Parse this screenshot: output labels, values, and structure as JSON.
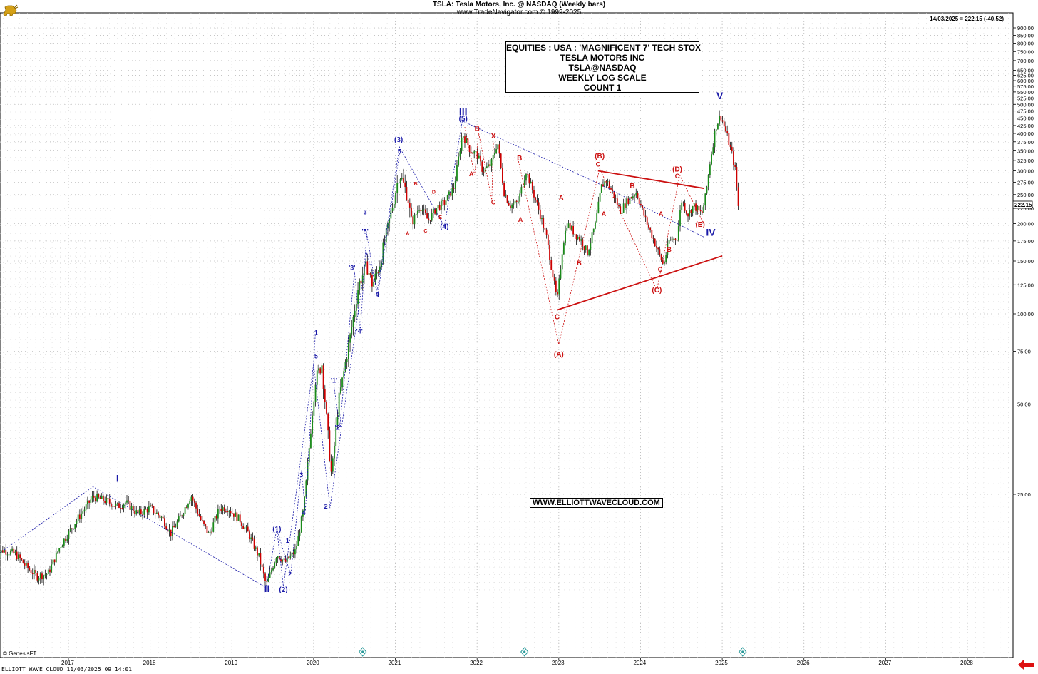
{
  "header": {
    "title": "TSLA:  Tesla Motors, Inc. @ NASDAQ  (Weekly bars)",
    "subtitle": "www.TradeNavigator.com © 1999-2025",
    "last_close": "14/03/2025 = 222.15 (-40.52)",
    "price_tag": "222.15"
  },
  "infobox": {
    "lines": [
      "EQUITIES : USA : 'MAGNIFICENT 7' TECH STOX",
      "TESLA MOTORS INC",
      "TSLA@NASDAQ",
      "WEEKLY LOG SCALE",
      "COUNT 1"
    ]
  },
  "website": "WWW.ELLIOTTWAVECLOUD.COM",
  "credit": "© GenesisFT",
  "footer": "ELLIOTT WAVE CLOUD   11/03/2025 09:14:01",
  "colors": {
    "up": "#1a8a1a",
    "down": "#cc0000",
    "blue": "#1a1aa8",
    "red": "#cc1111",
    "grid": "#bdbdbd"
  },
  "icons": [
    "bull-logo-icon",
    "left-arrow-icon",
    "marker-icon"
  ],
  "chart_data": {
    "type": "candlestick",
    "scale": "log",
    "ylim": [
      11,
      900
    ],
    "xlim": [
      2016.1,
      2028.6
    ],
    "grid": true,
    "y_ticks": [
      25,
      50,
      75,
      100,
      125,
      150,
      175,
      200,
      225,
      250,
      275,
      300,
      325,
      350,
      375,
      400,
      425,
      450,
      475,
      500,
      525,
      550,
      575,
      600,
      625,
      650,
      700,
      750,
      800,
      850,
      900
    ],
    "x_ticks": [
      "2017",
      "2018",
      "2019",
      "2020",
      "2021",
      "2022",
      "2023",
      "2024",
      "2025",
      "2026",
      "2027",
      "2028"
    ],
    "price_path": [
      [
        2016.1,
        15.5
      ],
      [
        2016.2,
        16.3
      ],
      [
        2016.35,
        15.8
      ],
      [
        2016.5,
        14.2
      ],
      [
        2016.62,
        13.3
      ],
      [
        2016.75,
        13.6
      ],
      [
        2016.9,
        16.8
      ],
      [
        2017.1,
        20.5
      ],
      [
        2017.3,
        24.5
      ],
      [
        2017.45,
        23.8
      ],
      [
        2017.6,
        22.8
      ],
      [
        2017.7,
        23.5
      ],
      [
        2017.85,
        21.5
      ],
      [
        2018.0,
        22.5
      ],
      [
        2018.15,
        20.8
      ],
      [
        2018.25,
        18.5
      ],
      [
        2018.35,
        20.5
      ],
      [
        2018.5,
        24.8
      ],
      [
        2018.62,
        20.5
      ],
      [
        2018.72,
        18.3
      ],
      [
        2018.85,
        22.5
      ],
      [
        2018.95,
        22.5
      ],
      [
        2019.1,
        20.5
      ],
      [
        2019.2,
        18.5
      ],
      [
        2019.33,
        15.5
      ],
      [
        2019.42,
        12.4
      ],
      [
        2019.55,
        15.8
      ],
      [
        2019.65,
        14.8
      ],
      [
        2019.78,
        16.2
      ],
      [
        2019.88,
        22.5
      ],
      [
        2020.02,
        60
      ],
      [
        2020.1,
        68
      ],
      [
        2020.22,
        28.5
      ],
      [
        2020.3,
        50
      ],
      [
        2020.45,
        85
      ],
      [
        2020.55,
        125
      ],
      [
        2020.65,
        145
      ],
      [
        2020.72,
        125
      ],
      [
        2020.8,
        143
      ],
      [
        2020.92,
        200
      ],
      [
        2021.05,
        295
      ],
      [
        2021.15,
        248
      ],
      [
        2021.2,
        200
      ],
      [
        2021.3,
        230
      ],
      [
        2021.4,
        205
      ],
      [
        2021.5,
        225
      ],
      [
        2021.6,
        235
      ],
      [
        2021.72,
        265
      ],
      [
        2021.82,
        400
      ],
      [
        2021.92,
        350
      ],
      [
        2022.0,
        340
      ],
      [
        2022.07,
        300
      ],
      [
        2022.17,
        315
      ],
      [
        2022.25,
        375
      ],
      [
        2022.33,
        255
      ],
      [
        2022.4,
        230
      ],
      [
        2022.5,
        235
      ],
      [
        2022.6,
        300
      ],
      [
        2022.75,
        225
      ],
      [
        2022.85,
        180
      ],
      [
        2022.98,
        110
      ],
      [
        2023.05,
        170
      ],
      [
        2023.1,
        200
      ],
      [
        2023.2,
        185
      ],
      [
        2023.28,
        175
      ],
      [
        2023.35,
        160
      ],
      [
        2023.45,
        200
      ],
      [
        2023.52,
        265
      ],
      [
        2023.58,
        280
      ],
      [
        2023.67,
        250
      ],
      [
        2023.75,
        220
      ],
      [
        2023.85,
        240
      ],
      [
        2023.95,
        255
      ],
      [
        2024.05,
        210
      ],
      [
        2024.15,
        180
      ],
      [
        2024.28,
        145
      ],
      [
        2024.35,
        175
      ],
      [
        2024.45,
        180
      ],
      [
        2024.5,
        240
      ],
      [
        2024.58,
        215
      ],
      [
        2024.65,
        230
      ],
      [
        2024.75,
        215
      ],
      [
        2024.8,
        250
      ],
      [
        2024.85,
        320
      ],
      [
        2024.92,
        420
      ],
      [
        2024.98,
        460
      ],
      [
        2025.05,
        400
      ],
      [
        2025.12,
        340
      ],
      [
        2025.16,
        300
      ],
      [
        2025.2,
        222
      ]
    ],
    "ohlc_last": {
      "date": "14/03/2025",
      "close": 222.15,
      "change": -40.52
    },
    "annotations": [
      {
        "t": 2017.6,
        "p": 27.5,
        "label": "I",
        "color": "blue",
        "size": "big"
      },
      {
        "t": 2019.43,
        "p": 11.8,
        "label": "II",
        "color": "blue",
        "size": "big"
      },
      {
        "t": 2021.83,
        "p": 460,
        "label": "III",
        "color": "blue",
        "size": "big"
      },
      {
        "t": 2024.86,
        "p": 182,
        "label": "IV",
        "color": "blue",
        "size": "big"
      },
      {
        "t": 2024.97,
        "p": 520,
        "label": "V",
        "color": "blue",
        "size": "big"
      },
      {
        "t": 2019.55,
        "p": 18.8,
        "label": "(1)",
        "color": "blue",
        "size": "med"
      },
      {
        "t": 2019.63,
        "p": 11.8,
        "label": "(2)",
        "color": "blue",
        "size": "med"
      },
      {
        "t": 2021.04,
        "p": 375,
        "label": "(3)",
        "color": "blue",
        "size": "med"
      },
      {
        "t": 2021.6,
        "p": 192,
        "label": "(4)",
        "color": "blue",
        "size": "med"
      },
      {
        "t": 2021.83,
        "p": 440,
        "label": "(5)",
        "color": "blue",
        "size": "med"
      },
      {
        "t": 2019.68,
        "p": 17.2,
        "label": "1",
        "color": "blue",
        "size": "small"
      },
      {
        "t": 2019.71,
        "p": 13.3,
        "label": "2",
        "color": "blue",
        "size": "small"
      },
      {
        "t": 2019.85,
        "p": 28.5,
        "label": "3",
        "color": "blue",
        "size": "small"
      },
      {
        "t": 2019.88,
        "p": 21.3,
        "label": "4",
        "color": "blue",
        "size": "small"
      },
      {
        "t": 2020.03,
        "p": 85,
        "label": "1",
        "color": "blue",
        "size": "small"
      },
      {
        "t": 2020.03,
        "p": 71,
        "label": "5",
        "color": "blue",
        "size": "small"
      },
      {
        "t": 2020.15,
        "p": 22.4,
        "label": "2",
        "color": "blue",
        "size": "small"
      },
      {
        "t": 2020.25,
        "p": 59,
        "label": "'1'",
        "color": "blue",
        "size": "small"
      },
      {
        "t": 2020.3,
        "p": 41,
        "label": "'2'",
        "color": "blue",
        "size": "small"
      },
      {
        "t": 2020.47,
        "p": 140,
        "label": "'3'",
        "color": "blue",
        "size": "small"
      },
      {
        "t": 2020.56,
        "p": 86,
        "label": "'4'",
        "color": "blue",
        "size": "small"
      },
      {
        "t": 2020.63,
        "p": 185,
        "label": "'5'",
        "color": "blue",
        "size": "small"
      },
      {
        "t": 2020.63,
        "p": 215,
        "label": "3",
        "color": "blue",
        "size": "small"
      },
      {
        "t": 2020.78,
        "p": 114,
        "label": "4",
        "color": "blue",
        "size": "small"
      },
      {
        "t": 2021.05,
        "p": 342,
        "label": "5",
        "color": "blue",
        "size": "small"
      },
      {
        "t": 2021.15,
        "p": 183,
        "label": "A",
        "color": "red",
        "size": "tiny"
      },
      {
        "t": 2021.25,
        "p": 268,
        "label": "B",
        "color": "red",
        "size": "tiny"
      },
      {
        "t": 2021.37,
        "p": 187,
        "label": "C",
        "color": "red",
        "size": "tiny"
      },
      {
        "t": 2021.47,
        "p": 252,
        "label": "D",
        "color": "red",
        "size": "tiny"
      },
      {
        "t": 2021.55,
        "p": 207,
        "label": "E",
        "color": "red",
        "size": "tiny"
      },
      {
        "t": 2021.93,
        "p": 288,
        "label": "A",
        "color": "red",
        "size": "small"
      },
      {
        "t": 2022.0,
        "p": 408,
        "label": "B",
        "color": "red",
        "size": "med"
      },
      {
        "t": 2022.2,
        "p": 232,
        "label": "C",
        "color": "red",
        "size": "small"
      },
      {
        "t": 2022.2,
        "p": 385,
        "label": "X",
        "color": "red",
        "size": "med"
      },
      {
        "t": 2022.52,
        "p": 325,
        "label": "B",
        "color": "red",
        "size": "med"
      },
      {
        "t": 2022.53,
        "p": 203,
        "label": "A",
        "color": "red",
        "size": "small"
      },
      {
        "t": 2022.98,
        "p": 96,
        "label": "C",
        "color": "red",
        "size": "med"
      },
      {
        "t": 2023.0,
        "p": 72,
        "label": "(A)",
        "color": "red",
        "size": "med"
      },
      {
        "t": 2023.03,
        "p": 240,
        "label": "A",
        "color": "red",
        "size": "small"
      },
      {
        "t": 2023.25,
        "p": 145,
        "label": "B",
        "color": "red",
        "size": "small"
      },
      {
        "t": 2023.5,
        "p": 330,
        "label": "(B)",
        "color": "red",
        "size": "med"
      },
      {
        "t": 2023.48,
        "p": 310,
        "label": "C",
        "color": "red",
        "size": "small"
      },
      {
        "t": 2023.55,
        "p": 212,
        "label": "A",
        "color": "red",
        "size": "small"
      },
      {
        "t": 2023.9,
        "p": 262,
        "label": "B",
        "color": "red",
        "size": "med"
      },
      {
        "t": 2024.25,
        "p": 212,
        "label": "A",
        "color": "red",
        "size": "small"
      },
      {
        "t": 2024.35,
        "p": 161,
        "label": "B",
        "color": "red",
        "size": "small"
      },
      {
        "t": 2024.24,
        "p": 138,
        "label": "C",
        "color": "red",
        "size": "small"
      },
      {
        "t": 2024.2,
        "p": 118,
        "label": "(C)",
        "color": "red",
        "size": "med"
      },
      {
        "t": 2024.45,
        "p": 298,
        "label": "(D)",
        "color": "red",
        "size": "med"
      },
      {
        "t": 2024.45,
        "p": 283,
        "label": "C",
        "color": "red",
        "size": "small"
      },
      {
        "t": 2024.73,
        "p": 195,
        "label": "(E)",
        "color": "red",
        "size": "med"
      }
    ],
    "red_lines": [
      [
        [
          2022.98,
          103
        ],
        [
          2025.0,
          156
        ]
      ],
      [
        [
          2023.48,
          300
        ],
        [
          2024.78,
          262
        ]
      ]
    ],
    "blue_dotted_lines": [
      [
        [
          2016.1,
          15.5
        ],
        [
          2017.3,
          26.5
        ],
        [
          2019.42,
          12.2
        ],
        [
          2019.55,
          19.2
        ],
        [
          2019.63,
          12.3
        ],
        [
          2020.0,
          68
        ],
        [
          2020.2,
          22.5
        ],
        [
          2020.65,
          160
        ],
        [
          2020.78,
          120
        ],
        [
          2021.05,
          360
        ],
        [
          2021.6,
          196
        ],
        [
          2021.82,
          440
        ],
        [
          2023.45,
          275
        ],
        [
          2024.78,
          180
        ]
      ],
      [
        [
          2019.55,
          19.2
        ],
        [
          2019.62,
          16.5
        ],
        [
          2019.72,
          13.5
        ],
        [
          2019.85,
          30
        ],
        [
          2019.9,
          22
        ],
        [
          2020.02,
          85
        ]
      ],
      [
        [
          2020.25,
          57
        ],
        [
          2020.32,
          42
        ],
        [
          2020.5,
          138
        ],
        [
          2020.57,
          88
        ],
        [
          2020.65,
          185
        ],
        [
          2020.78,
          114
        ],
        [
          2021.05,
          342
        ]
      ]
    ],
    "red_dotted_lines": [
      [
        [
          2022.5,
          330
        ],
        [
          2023.0,
          79
        ],
        [
          2023.5,
          305
        ],
        [
          2024.2,
          120
        ],
        [
          2024.48,
          290
        ],
        [
          2024.78,
          198
        ]
      ],
      [
        [
          2021.85,
          420
        ],
        [
          2021.97,
          290
        ],
        [
          2022.02,
          400
        ],
        [
          2022.18,
          240
        ],
        [
          2022.2,
          375
        ]
      ]
    ]
  }
}
